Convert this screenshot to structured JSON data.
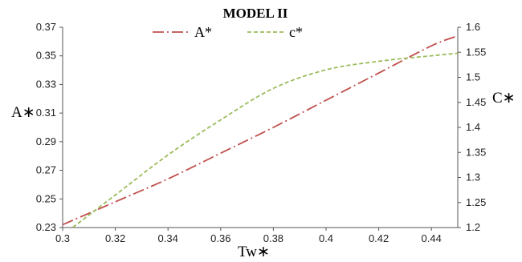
{
  "chart_data": {
    "type": "line",
    "title": "MODEL II",
    "xlabel": "Tw∗",
    "ylabel_left": "A∗",
    "ylabel_right": "C∗",
    "xlim": [
      0.3,
      0.45
    ],
    "ylim_left": [
      0.23,
      0.37
    ],
    "ylim_right": [
      1.2,
      1.6
    ],
    "x_ticks": [
      "0.3",
      "0.32",
      "0.34",
      "0.36",
      "0.38",
      "0.4",
      "0.42",
      "0.44"
    ],
    "y_left_ticks": [
      "0.23",
      "0.25",
      "0.27",
      "0.29",
      "0.31",
      "0.33",
      "0.35",
      "0.37"
    ],
    "y_right_ticks": [
      "1.2",
      "1.25",
      "1.3",
      "1.35",
      "1.4",
      "1.45",
      "1.5",
      "1.55",
      "1.6"
    ],
    "grid": false,
    "legend": "top",
    "series": [
      {
        "name": "A*",
        "axis": "left",
        "color": "#c0504d",
        "style": "dash-dot",
        "x": [
          0.3,
          0.32,
          0.34,
          0.36,
          0.38,
          0.4,
          0.42,
          0.44,
          0.45
        ],
        "y": [
          0.232,
          0.248,
          0.264,
          0.282,
          0.3,
          0.319,
          0.338,
          0.357,
          0.364
        ]
      },
      {
        "name": "c*",
        "axis": "right",
        "color": "#9bbb59",
        "style": "dashed",
        "x": [
          0.3,
          0.32,
          0.34,
          0.36,
          0.38,
          0.4,
          0.42,
          0.44,
          0.45
        ],
        "y": [
          1.185,
          1.265,
          1.345,
          1.415,
          1.478,
          1.515,
          1.532,
          1.543,
          1.548
        ]
      }
    ]
  }
}
